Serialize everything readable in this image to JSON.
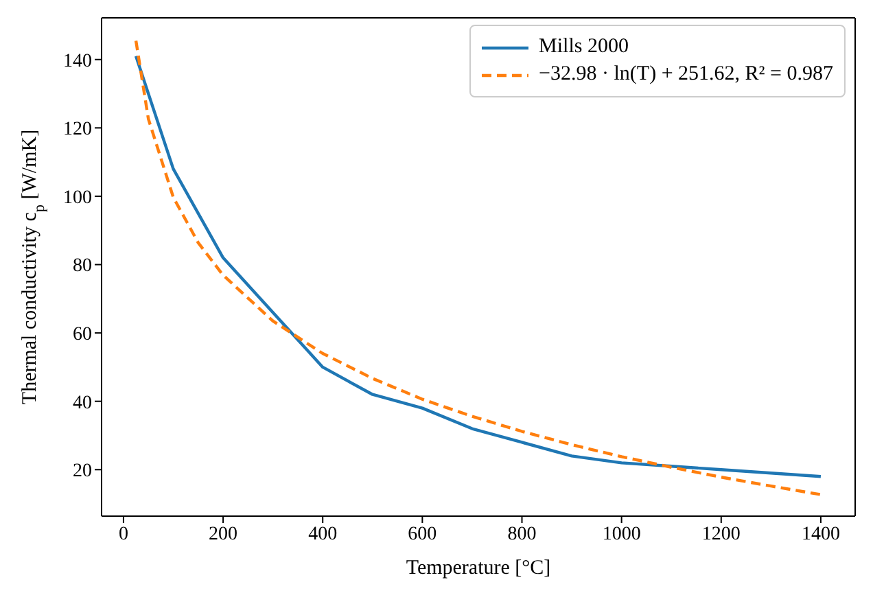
{
  "chart_data": {
    "type": "line",
    "xlabel": "Temperature [°C]",
    "ylabel": "Thermal conductivity c$_{p}$ [W/mK]",
    "xlim": [
      -44,
      1469
    ],
    "xticks": [
      0,
      200,
      400,
      600,
      800,
      1000,
      1200,
      1400
    ],
    "ylim": [
      6.4,
      152.2
    ],
    "yticks": [
      20,
      40,
      60,
      80,
      100,
      120,
      140
    ],
    "legend": "top right",
    "series": [
      {
        "name": "Mills 2000",
        "color": "#1f77b4",
        "line_style": "solid",
        "x": [
          25,
          100,
          200,
          300,
          400,
          500,
          600,
          700,
          800,
          900,
          1000,
          1100,
          1200,
          1300,
          1400
        ],
        "values": [
          141,
          108,
          82,
          66,
          50,
          42,
          38,
          32,
          28,
          24,
          22,
          21,
          20,
          19,
          18
        ]
      },
      {
        "name": "−32.98 · ln(T) + 251.62, R² = 0.987",
        "color": "#ff7f0e",
        "line_style": "dashed",
        "x": [
          25,
          50,
          100,
          150,
          200,
          300,
          400,
          500,
          600,
          700,
          800,
          900,
          1000,
          1100,
          1200,
          1300,
          1400
        ],
        "values": [
          145.5,
          122.6,
          99.7,
          86.4,
          76.9,
          63.5,
          54.0,
          46.7,
          40.6,
          35.6,
          31.2,
          27.3,
          23.8,
          20.7,
          17.8,
          15.2,
          12.7
        ]
      }
    ]
  }
}
